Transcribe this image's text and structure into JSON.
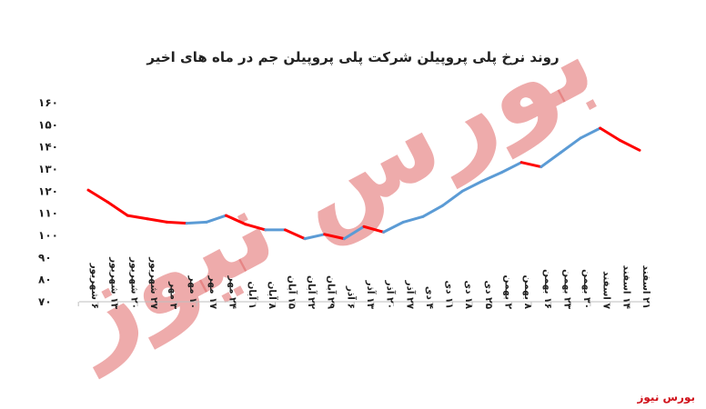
{
  "brand_label": "بورس نیوز",
  "watermark_text": "بورس نیوز",
  "colors": {
    "up": "#5b9bd5",
    "down": "#ff0000",
    "watermark": "#e06666",
    "axis": "#bfbfbf",
    "text": "#222222",
    "brand": "#d0121b"
  },
  "chart_data": {
    "type": "line",
    "title": "روند نرخ پلی پروپیلن شرکت پلی پروپیلن جم در ماه های اخیر",
    "xlabel": "",
    "ylabel": "",
    "ylim": [
      70,
      160
    ],
    "yticks": [
      70,
      80,
      90,
      100,
      110,
      120,
      130,
      140,
      150,
      160
    ],
    "grid": false,
    "legend": "none",
    "categories": [
      "۶ شهریور",
      "۱۳ شهریور",
      "۲۰ شهریور",
      "۲۷ شهریور",
      "۳ مهر",
      "۱۰ مهر",
      "۱۷ مهر",
      "۲۴ مهر",
      "۱ آبان",
      "۸ آبان",
      "۱۵ آبان",
      "۲۲ آبان",
      "۲۹ آبان",
      "۶ آذر",
      "۱۳ آذر",
      "۲۰ آذر",
      "۲۷ آذر",
      "۴ دی",
      "۱۱ دی",
      "۱۸ دی",
      "۲۵ دی",
      "۲ بهمن",
      "۸ بهمن",
      "۱۶ بهمن",
      "۲۳ بهمن",
      "۳۰ بهمن",
      "۷ اسفند",
      "۱۴ اسفند",
      "۲۱ اسفند"
    ],
    "values": [
      120.5,
      115,
      109,
      107.5,
      106,
      105.5,
      106,
      109,
      105,
      102.5,
      102.5,
      98.5,
      100.5,
      98.5,
      104,
      101.5,
      106,
      108.5,
      113.5,
      120,
      124.5,
      128.5,
      133,
      131,
      137.5,
      144,
      148.5,
      143,
      138.5
    ]
  }
}
